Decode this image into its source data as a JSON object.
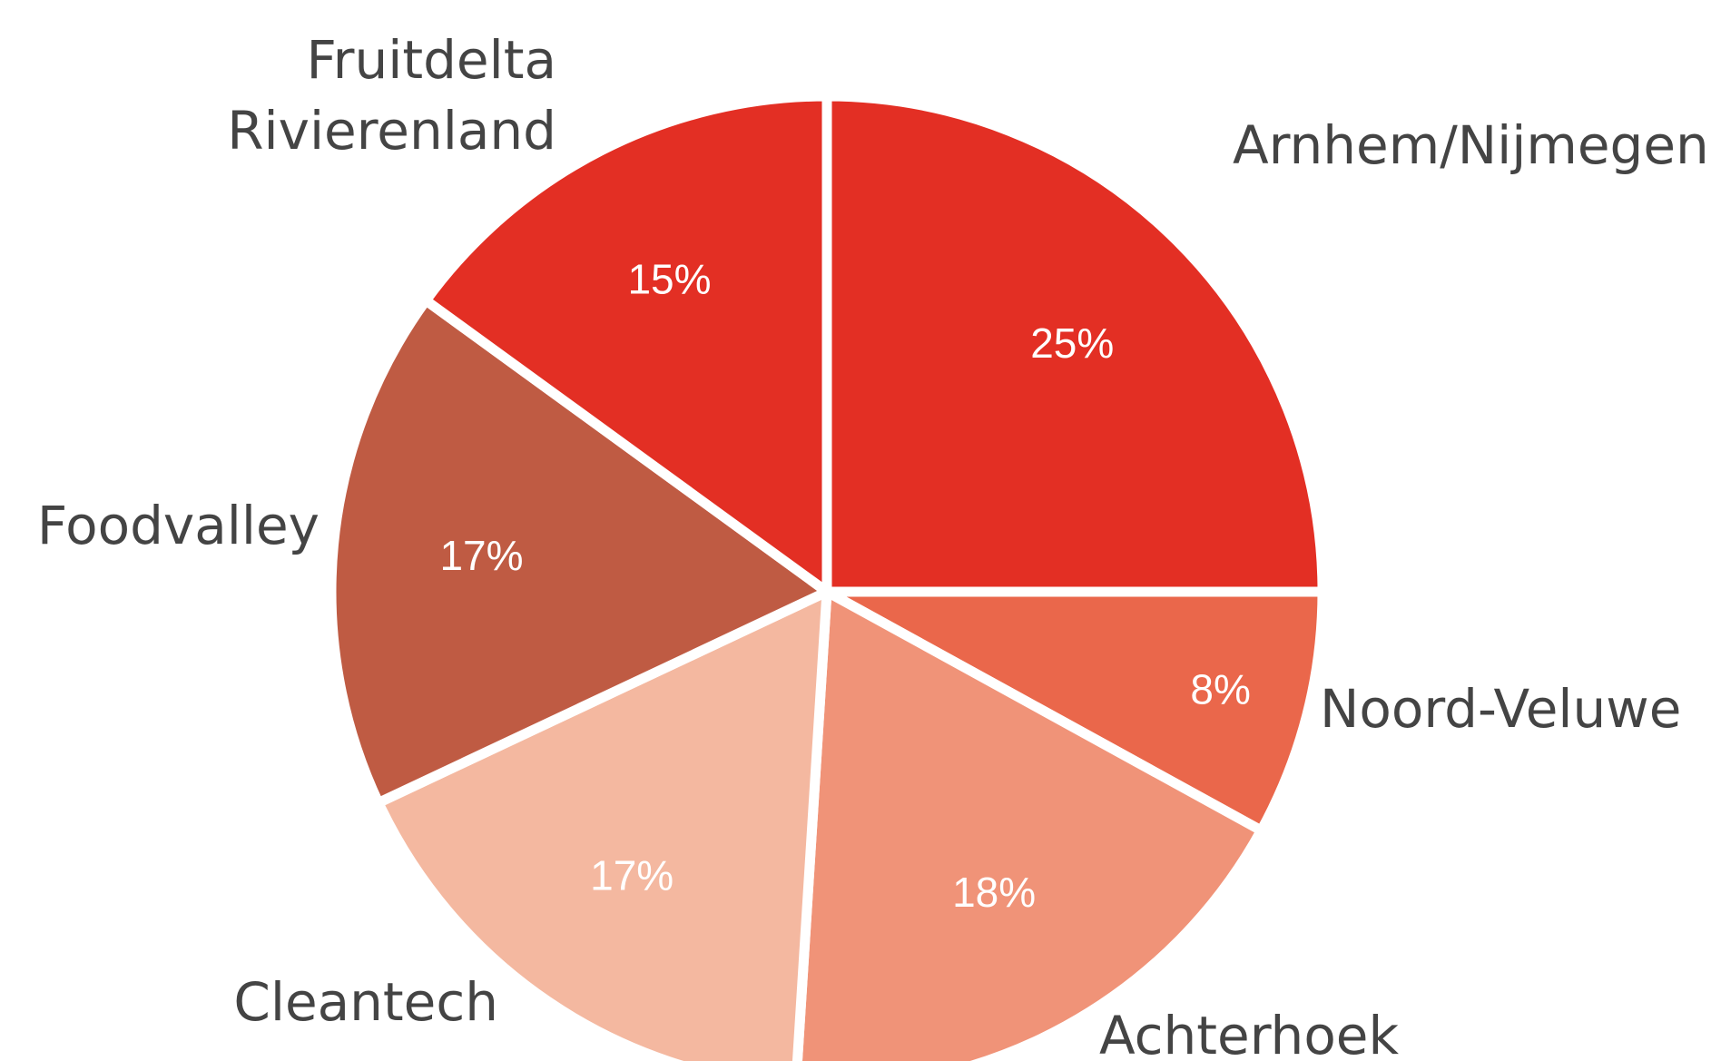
{
  "chart_data": {
    "type": "pie",
    "categories": [
      "Arnhem/Nijmegen",
      "Noord-Veluwe",
      "Achterhoek",
      "Cleantech",
      "Foodvalley",
      "Fruitdelta\nRivierenland"
    ],
    "values": [
      25,
      8,
      18,
      17,
      17,
      15
    ],
    "value_labels": [
      "25%",
      "8%",
      "18%",
      "17%",
      "17%",
      "15%"
    ],
    "colors": [
      "#e32f24",
      "#ea674b",
      "#f09378",
      "#f4b8a0",
      "#bf5b43",
      "#e32f24"
    ]
  }
}
